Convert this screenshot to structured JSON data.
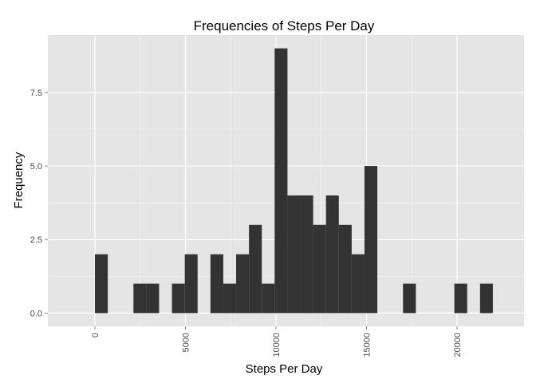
{
  "colors": {
    "panel_background": "#e5e5e5",
    "grid_major": "#ffffff",
    "grid_minor": "#f2f2f2",
    "bar_fill": "#333333",
    "tick_color": "#7f7f7f"
  },
  "chart_data": {
    "type": "bar",
    "title": "Frequencies of Steps Per Day",
    "xlabel": "Steps Per Day",
    "ylabel": "Frequency",
    "xlim": [
      -2600,
      23700
    ],
    "ylim": [
      -0.45,
      9.45
    ],
    "grid": true,
    "legend": "none",
    "bin_width": 709,
    "x_ticks": [
      {
        "value": 0,
        "label": "0"
      },
      {
        "value": 5000,
        "label": "5000"
      },
      {
        "value": 10000,
        "label": "10000"
      },
      {
        "value": 15000,
        "label": "15000"
      },
      {
        "value": 20000,
        "label": "20000"
      }
    ],
    "y_ticks": [
      {
        "value": 0,
        "label": "0.0"
      },
      {
        "value": 2.5,
        "label": "2.5"
      },
      {
        "value": 5,
        "label": "5.0"
      },
      {
        "value": 7.5,
        "label": "7.5"
      }
    ],
    "bins": [
      {
        "start": -0.5,
        "count": 2
      },
      {
        "start": 708.5,
        "count": 0
      },
      {
        "start": 1417.5,
        "count": 0
      },
      {
        "start": 2126.5,
        "count": 1
      },
      {
        "start": 2835.5,
        "count": 1
      },
      {
        "start": 3544.5,
        "count": 0
      },
      {
        "start": 4253.5,
        "count": 1
      },
      {
        "start": 4962.5,
        "count": 2
      },
      {
        "start": 5671.5,
        "count": 0
      },
      {
        "start": 6380.5,
        "count": 2
      },
      {
        "start": 7089.5,
        "count": 1
      },
      {
        "start": 7798.5,
        "count": 2
      },
      {
        "start": 8507.5,
        "count": 3
      },
      {
        "start": 9216.5,
        "count": 1
      },
      {
        "start": 9925.5,
        "count": 9
      },
      {
        "start": 10634.5,
        "count": 4
      },
      {
        "start": 11343.5,
        "count": 4
      },
      {
        "start": 12052.5,
        "count": 3
      },
      {
        "start": 12761.5,
        "count": 4
      },
      {
        "start": 13470.5,
        "count": 3
      },
      {
        "start": 14179.5,
        "count": 2
      },
      {
        "start": 14888.5,
        "count": 5
      },
      {
        "start": 15597.5,
        "count": 0
      },
      {
        "start": 16306.5,
        "count": 0
      },
      {
        "start": 17015.5,
        "count": 1
      },
      {
        "start": 17724.5,
        "count": 0
      },
      {
        "start": 18433.5,
        "count": 0
      },
      {
        "start": 19142.5,
        "count": 0
      },
      {
        "start": 19851.5,
        "count": 1
      },
      {
        "start": 20560.5,
        "count": 0
      },
      {
        "start": 21269.5,
        "count": 1
      }
    ]
  }
}
